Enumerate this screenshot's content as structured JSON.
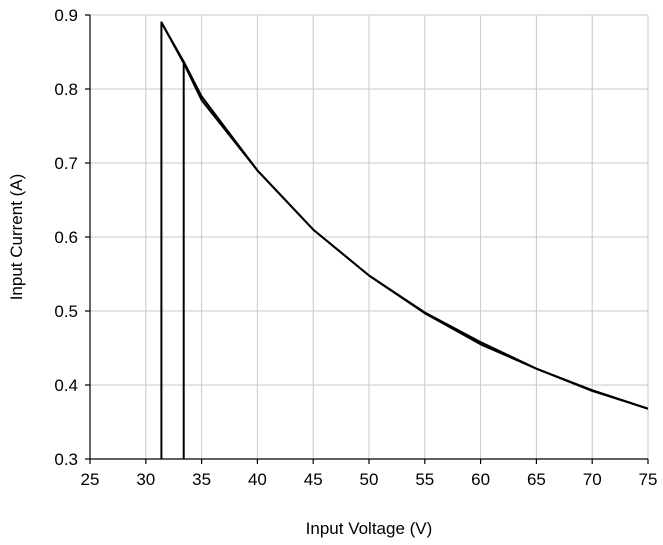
{
  "chart_data": {
    "type": "line",
    "title": "",
    "xlabel": "Input Voltage (V)",
    "ylabel": "Input Current (A)",
    "xlim": [
      25,
      75
    ],
    "ylim": [
      0.3,
      0.9
    ],
    "xticks": [
      25,
      30,
      35,
      40,
      45,
      50,
      55,
      60,
      65,
      70,
      75
    ],
    "yticks": [
      0.3,
      0.4,
      0.5,
      0.6,
      0.7,
      0.8,
      0.9
    ],
    "x_tick_labels": [
      "25",
      "30",
      "35",
      "40",
      "45",
      "50",
      "55",
      "60",
      "65",
      "70",
      "75"
    ],
    "y_tick_labels": [
      "0.3",
      "0.4",
      "0.5",
      "0.6",
      "0.7",
      "0.8",
      "0.9"
    ],
    "grid": true,
    "legend": "none",
    "series": [
      {
        "values_xy": [
          [
            31.4,
            0.3
          ],
          [
            31.4,
            0.89
          ],
          [
            33.4,
            0.837
          ],
          [
            33.4,
            0.3
          ]
        ],
        "color": "#000000"
      },
      {
        "values_xy": [
          [
            33.4,
            0.837
          ],
          [
            35,
            0.79
          ],
          [
            40,
            0.69
          ],
          [
            45,
            0.61
          ],
          [
            50,
            0.548
          ],
          [
            55,
            0.497
          ],
          [
            60,
            0.455
          ],
          [
            65,
            0.422
          ],
          [
            70,
            0.392
          ],
          [
            75,
            0.368
          ]
        ],
        "color": "#000000"
      },
      {
        "values_xy": [
          [
            31.4,
            0.89
          ],
          [
            33.4,
            0.835
          ],
          [
            35,
            0.785
          ],
          [
            40,
            0.69
          ],
          [
            45,
            0.61
          ],
          [
            50,
            0.548
          ],
          [
            55,
            0.498
          ],
          [
            60,
            0.458
          ],
          [
            65,
            0.422
          ],
          [
            70,
            0.393
          ],
          [
            75,
            0.368
          ]
        ],
        "color": "#000000"
      }
    ]
  }
}
